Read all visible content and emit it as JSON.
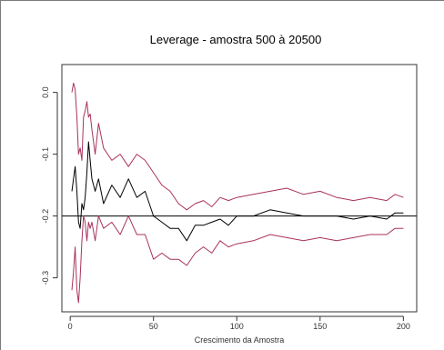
{
  "chart_data": {
    "type": "line",
    "title": "Leverage - amostra 500 à 20500",
    "xlabel": "Crescimento da Amostra",
    "ylabel": "",
    "xlim": [
      -5,
      208
    ],
    "ylim": [
      -0.355,
      0.045
    ],
    "xticks": [
      0,
      50,
      100,
      150,
      200
    ],
    "xtick_labels": [
      "0",
      "50",
      "100",
      "150",
      "200"
    ],
    "yticks": [
      0.0,
      -0.1,
      -0.2,
      -0.3
    ],
    "ytick_labels": [
      "0.0",
      "-0.1",
      "-0.2",
      "-0.3"
    ],
    "reference_line": -0.2,
    "grid": false,
    "legend": "none",
    "colors": {
      "upper": "#a8325e",
      "center": "#000000",
      "lower": "#a8325e",
      "reference": "#000000"
    },
    "series": [
      {
        "key": "upper",
        "x": [
          1,
          2,
          3,
          4,
          5,
          6,
          7,
          8,
          9,
          10,
          11,
          12,
          13,
          15,
          17,
          20,
          25,
          30,
          35,
          40,
          45,
          50,
          55,
          60,
          65,
          70,
          75,
          80,
          85,
          90,
          95,
          100,
          110,
          120,
          130,
          140,
          150,
          160,
          170,
          180,
          190,
          195,
          200
        ],
        "y": [
          0.0,
          0.015,
          0.005,
          -0.04,
          -0.1,
          -0.09,
          -0.11,
          -0.04,
          -0.03,
          -0.015,
          -0.04,
          -0.035,
          -0.06,
          -0.1,
          -0.05,
          -0.09,
          -0.11,
          -0.1,
          -0.12,
          -0.1,
          -0.11,
          -0.13,
          -0.15,
          -0.16,
          -0.18,
          -0.19,
          -0.18,
          -0.175,
          -0.185,
          -0.17,
          -0.175,
          -0.17,
          -0.165,
          -0.16,
          -0.155,
          -0.165,
          -0.16,
          -0.17,
          -0.175,
          -0.17,
          -0.175,
          -0.165,
          -0.17
        ]
      },
      {
        "key": "center",
        "x": [
          1,
          2,
          3,
          4,
          5,
          6,
          7,
          8,
          9,
          10,
          11,
          12,
          13,
          15,
          17,
          20,
          25,
          30,
          35,
          40,
          45,
          50,
          55,
          60,
          65,
          70,
          75,
          80,
          85,
          90,
          95,
          100,
          110,
          120,
          130,
          140,
          150,
          160,
          170,
          180,
          190,
          195,
          200
        ],
        "y": [
          -0.16,
          -0.14,
          -0.12,
          -0.16,
          -0.21,
          -0.22,
          -0.18,
          -0.19,
          -0.17,
          -0.13,
          -0.08,
          -0.11,
          -0.14,
          -0.16,
          -0.14,
          -0.18,
          -0.15,
          -0.17,
          -0.14,
          -0.17,
          -0.16,
          -0.2,
          -0.21,
          -0.22,
          -0.22,
          -0.24,
          -0.215,
          -0.215,
          -0.21,
          -0.205,
          -0.215,
          -0.2,
          -0.2,
          -0.19,
          -0.195,
          -0.2,
          -0.2,
          -0.2,
          -0.205,
          -0.2,
          -0.205,
          -0.195,
          -0.195
        ]
      },
      {
        "key": "lower",
        "x": [
          1,
          2,
          3,
          4,
          5,
          6,
          7,
          8,
          9,
          10,
          11,
          12,
          13,
          15,
          17,
          20,
          25,
          30,
          35,
          40,
          45,
          50,
          55,
          60,
          65,
          70,
          75,
          80,
          85,
          90,
          95,
          100,
          110,
          120,
          130,
          140,
          150,
          160,
          170,
          180,
          190,
          195,
          200
        ],
        "y": [
          -0.32,
          -0.29,
          -0.25,
          -0.32,
          -0.34,
          -0.3,
          -0.24,
          -0.2,
          -0.21,
          -0.24,
          -0.21,
          -0.22,
          -0.21,
          -0.24,
          -0.2,
          -0.22,
          -0.21,
          -0.23,
          -0.2,
          -0.23,
          -0.23,
          -0.27,
          -0.26,
          -0.27,
          -0.27,
          -0.28,
          -0.26,
          -0.25,
          -0.26,
          -0.24,
          -0.25,
          -0.245,
          -0.24,
          -0.23,
          -0.235,
          -0.24,
          -0.235,
          -0.24,
          -0.235,
          -0.23,
          -0.23,
          -0.22,
          -0.22
        ]
      }
    ]
  }
}
